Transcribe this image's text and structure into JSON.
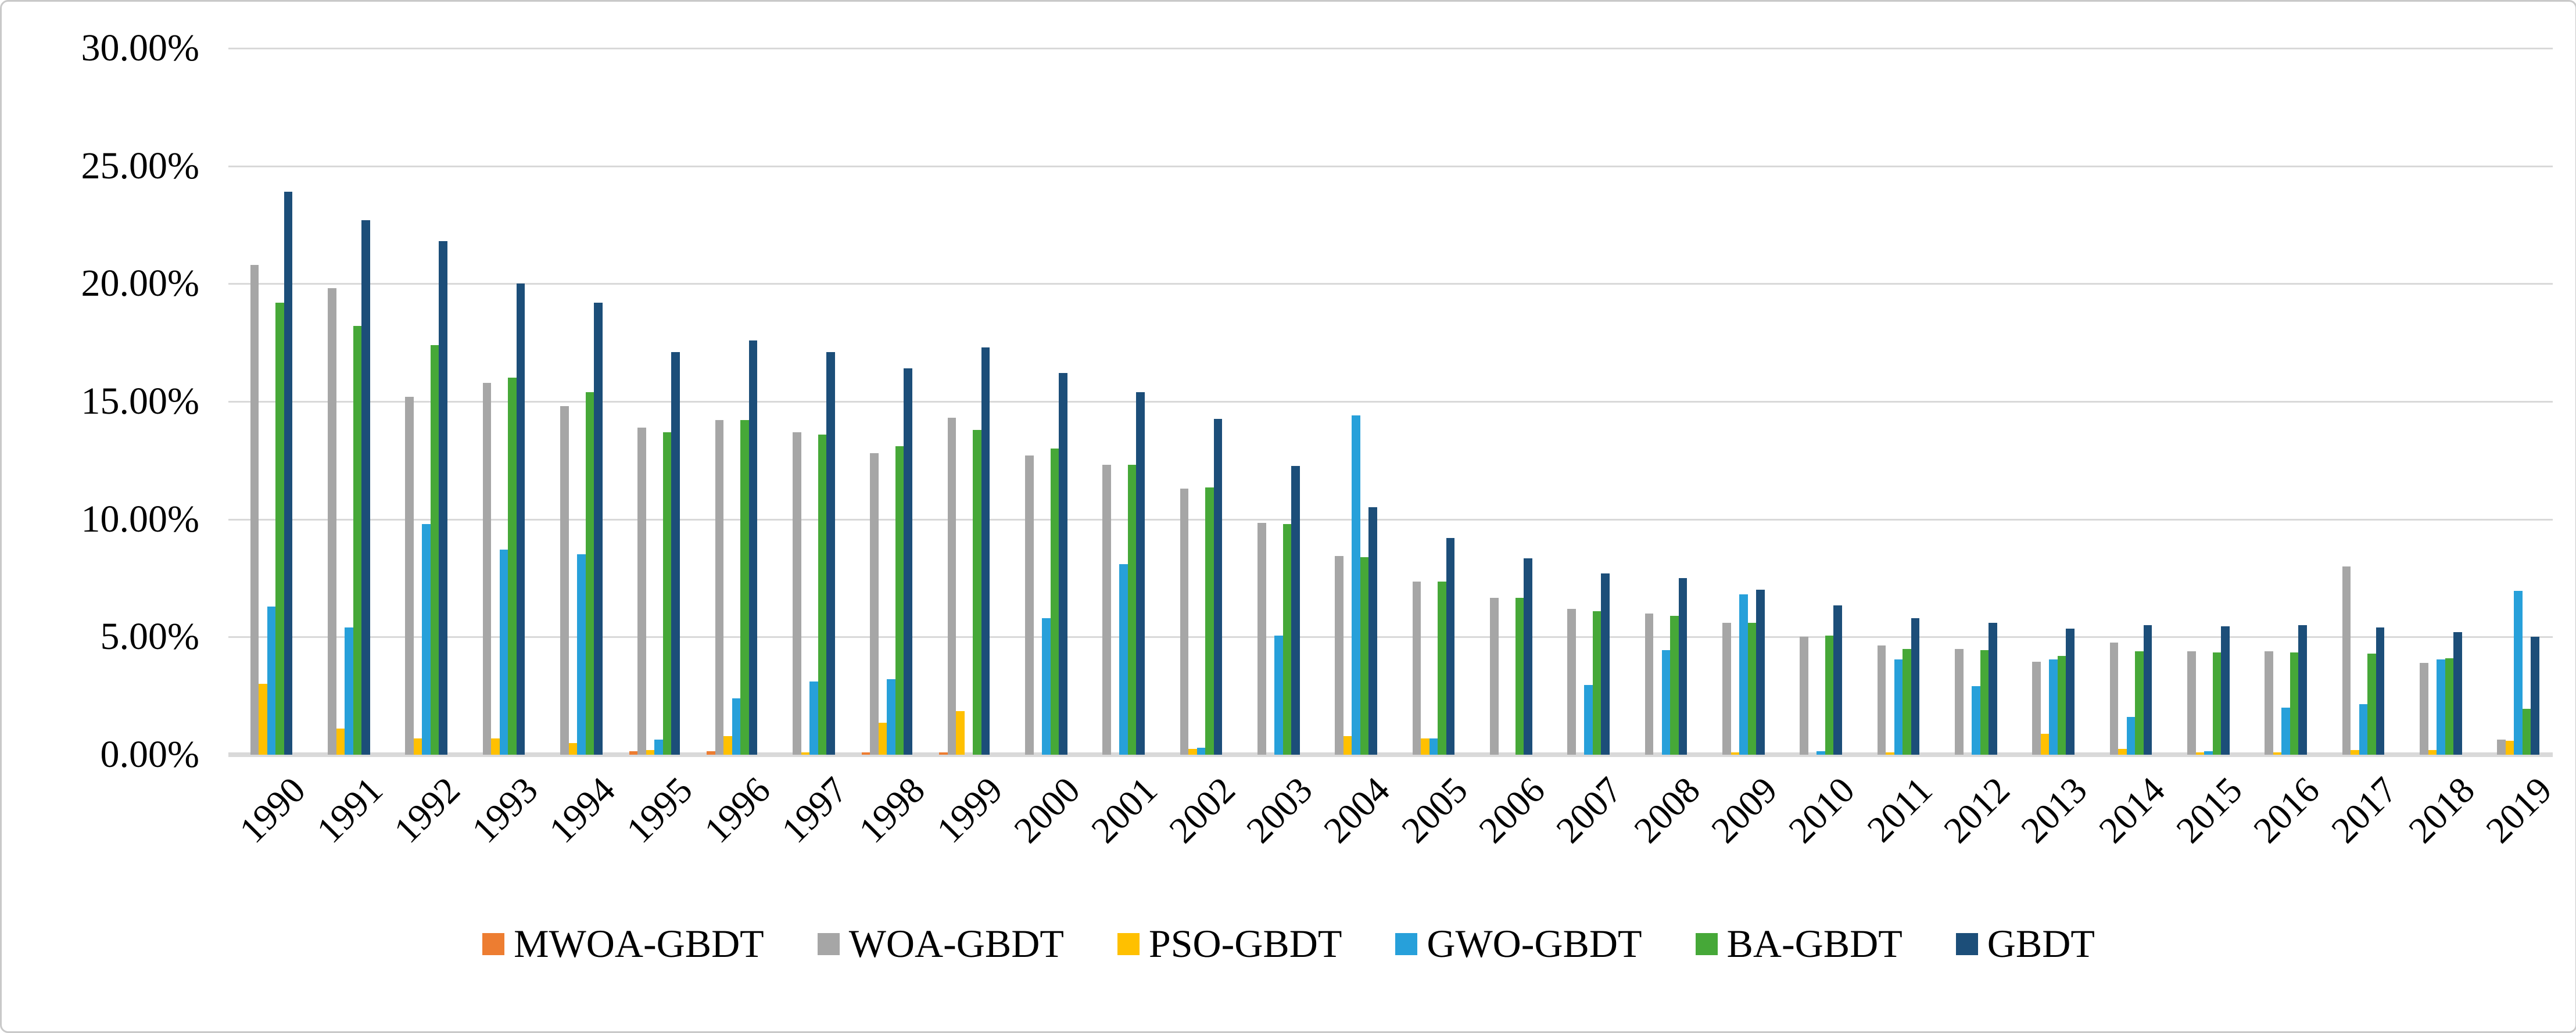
{
  "figure": {
    "background_color": "#ffffff",
    "border_color": "#c9c9c9",
    "gridline_color": "#d9d9d9",
    "text_color": "#000000"
  },
  "y_axis": {
    "min": 0,
    "max": 30,
    "step": 5,
    "tick_labels": [
      "0.00%",
      "5.00%",
      "10.00%",
      "15.00%",
      "20.00%",
      "25.00%",
      "30.00%"
    ]
  },
  "legend": {
    "position": "bottom",
    "items": [
      {
        "label": "MWOA-GBDT",
        "color": "#ed7d31"
      },
      {
        "label": "WOA-GBDT",
        "color": "#a6a6a6"
      },
      {
        "label": "PSO-GBDT",
        "color": "#ffc000"
      },
      {
        "label": "GWO-GBDT",
        "color": "#27a0da"
      },
      {
        "label": "BA-GBDT",
        "color": "#46a838"
      },
      {
        "label": "GBDT",
        "color": "#1c4e79"
      }
    ]
  },
  "chart_data": {
    "type": "bar",
    "title": "",
    "xlabel": "",
    "ylabel": "",
    "ylim": [
      0,
      30
    ],
    "grid": true,
    "legend_position": "bottom",
    "value_unit": "percent",
    "categories": [
      "1990",
      "1991",
      "1992",
      "1993",
      "1994",
      "1995",
      "1996",
      "1997",
      "1998",
      "1999",
      "2000",
      "2001",
      "2002",
      "2003",
      "2004",
      "2005",
      "2006",
      "2007",
      "2008",
      "2009",
      "2010",
      "2011",
      "2012",
      "2013",
      "2014",
      "2015",
      "2016",
      "2017",
      "2018",
      "2019"
    ],
    "series": [
      {
        "name": "MWOA-GBDT",
        "color": "#ed7d31",
        "values": [
          0,
          0,
          0,
          0,
          0,
          0.15,
          0.15,
          0,
          0.1,
          0.1,
          0,
          0,
          0,
          0,
          0,
          0,
          0,
          0,
          0,
          0,
          0,
          0,
          0,
          0,
          0,
          0,
          0,
          0,
          0,
          0
        ]
      },
      {
        "name": "WOA-GBDT",
        "color": "#a6a6a6",
        "values": [
          20.8,
          19.8,
          15.2,
          15.8,
          14.8,
          13.9,
          14.2,
          13.7,
          12.8,
          14.3,
          12.7,
          12.3,
          11.3,
          9.85,
          8.45,
          7.35,
          6.65,
          6.2,
          6.0,
          5.6,
          5.0,
          4.65,
          4.5,
          3.95,
          4.75,
          4.4,
          4.4,
          8.0,
          3.9,
          0.65
        ]
      },
      {
        "name": "PSO-GBDT",
        "color": "#ffc000",
        "values": [
          3.0,
          1.1,
          0.7,
          0.7,
          0.5,
          0.2,
          0.8,
          0.1,
          1.35,
          1.85,
          0,
          0,
          0.25,
          0,
          0.8,
          0.7,
          0,
          0,
          0,
          0.1,
          0,
          0.1,
          0,
          0.9,
          0.25,
          0.1,
          0.1,
          0.2,
          0.2,
          0.6
        ]
      },
      {
        "name": "GWO-GBDT",
        "color": "#27a0da",
        "values": [
          6.3,
          5.4,
          9.8,
          8.7,
          8.5,
          0.65,
          2.4,
          3.1,
          3.2,
          0,
          5.8,
          8.1,
          0.3,
          5.05,
          14.4,
          0.7,
          0,
          2.95,
          4.45,
          6.8,
          0.15,
          4.05,
          2.9,
          4.05,
          1.6,
          0.15,
          2.0,
          2.15,
          4.05,
          6.95
        ]
      },
      {
        "name": "BA-GBDT",
        "color": "#46a838",
        "values": [
          19.2,
          18.2,
          17.4,
          16.0,
          15.4,
          13.7,
          14.2,
          13.6,
          13.1,
          13.8,
          13.0,
          12.3,
          11.35,
          9.8,
          8.4,
          7.35,
          6.65,
          6.1,
          5.9,
          5.6,
          5.05,
          4.5,
          4.45,
          4.2,
          4.4,
          4.35,
          4.35,
          4.3,
          4.1,
          1.95
        ]
      },
      {
        "name": "GBDT",
        "color": "#1c4e79",
        "values": [
          23.9,
          22.7,
          21.8,
          20.0,
          19.2,
          17.1,
          17.6,
          17.1,
          16.4,
          17.3,
          16.2,
          15.4,
          14.25,
          12.25,
          10.5,
          9.2,
          8.35,
          7.7,
          7.5,
          7.0,
          6.35,
          5.8,
          5.6,
          5.35,
          5.5,
          5.45,
          5.5,
          5.4,
          5.2,
          5.0
        ]
      }
    ]
  }
}
